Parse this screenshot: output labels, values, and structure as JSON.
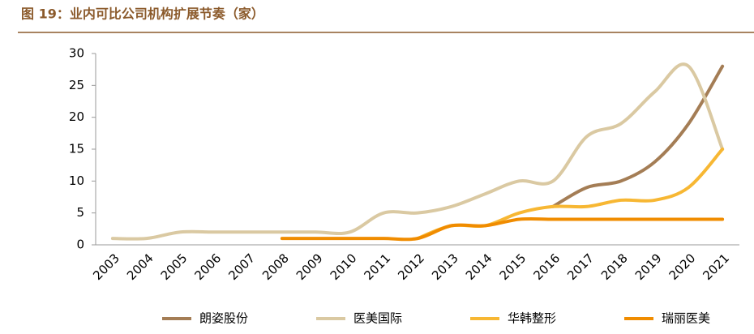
{
  "chart_data": {
    "type": "line",
    "title": "图 19：业内可比公司机构扩展节奏（家）",
    "categories": [
      "2003",
      "2004",
      "2005",
      "2006",
      "2007",
      "2008",
      "2009",
      "2010",
      "2011",
      "2012",
      "2013",
      "2014",
      "2015",
      "2016",
      "2017",
      "2018",
      "2019",
      "2020",
      "2021"
    ],
    "series": [
      {
        "name": "朗姿股份",
        "color": "#a47d55",
        "values": [
          null,
          null,
          null,
          null,
          null,
          null,
          null,
          null,
          null,
          null,
          null,
          null,
          null,
          6,
          9,
          10,
          13,
          19,
          28
        ]
      },
      {
        "name": "医美国际",
        "color": "#dac9a2",
        "values": [
          1,
          1,
          2,
          2,
          2,
          2,
          2,
          2,
          5,
          5,
          6,
          8,
          10,
          10,
          17,
          19,
          24,
          28,
          15
        ]
      },
      {
        "name": "华韩整形",
        "color": "#f7b733",
        "values": [
          null,
          null,
          null,
          null,
          null,
          null,
          null,
          null,
          null,
          1,
          3,
          3,
          5,
          6,
          6,
          7,
          7,
          9,
          15
        ]
      },
      {
        "name": "瑞丽医美",
        "color": "#f08c00",
        "values": [
          null,
          null,
          null,
          null,
          null,
          1,
          1,
          1,
          1,
          1,
          3,
          3,
          4,
          4,
          4,
          4,
          4,
          4,
          4
        ]
      }
    ],
    "ylim": [
      0,
      30
    ],
    "yticks": [
      0,
      5,
      10,
      15,
      20,
      25,
      30
    ],
    "grid": false,
    "legend": "bottom"
  }
}
